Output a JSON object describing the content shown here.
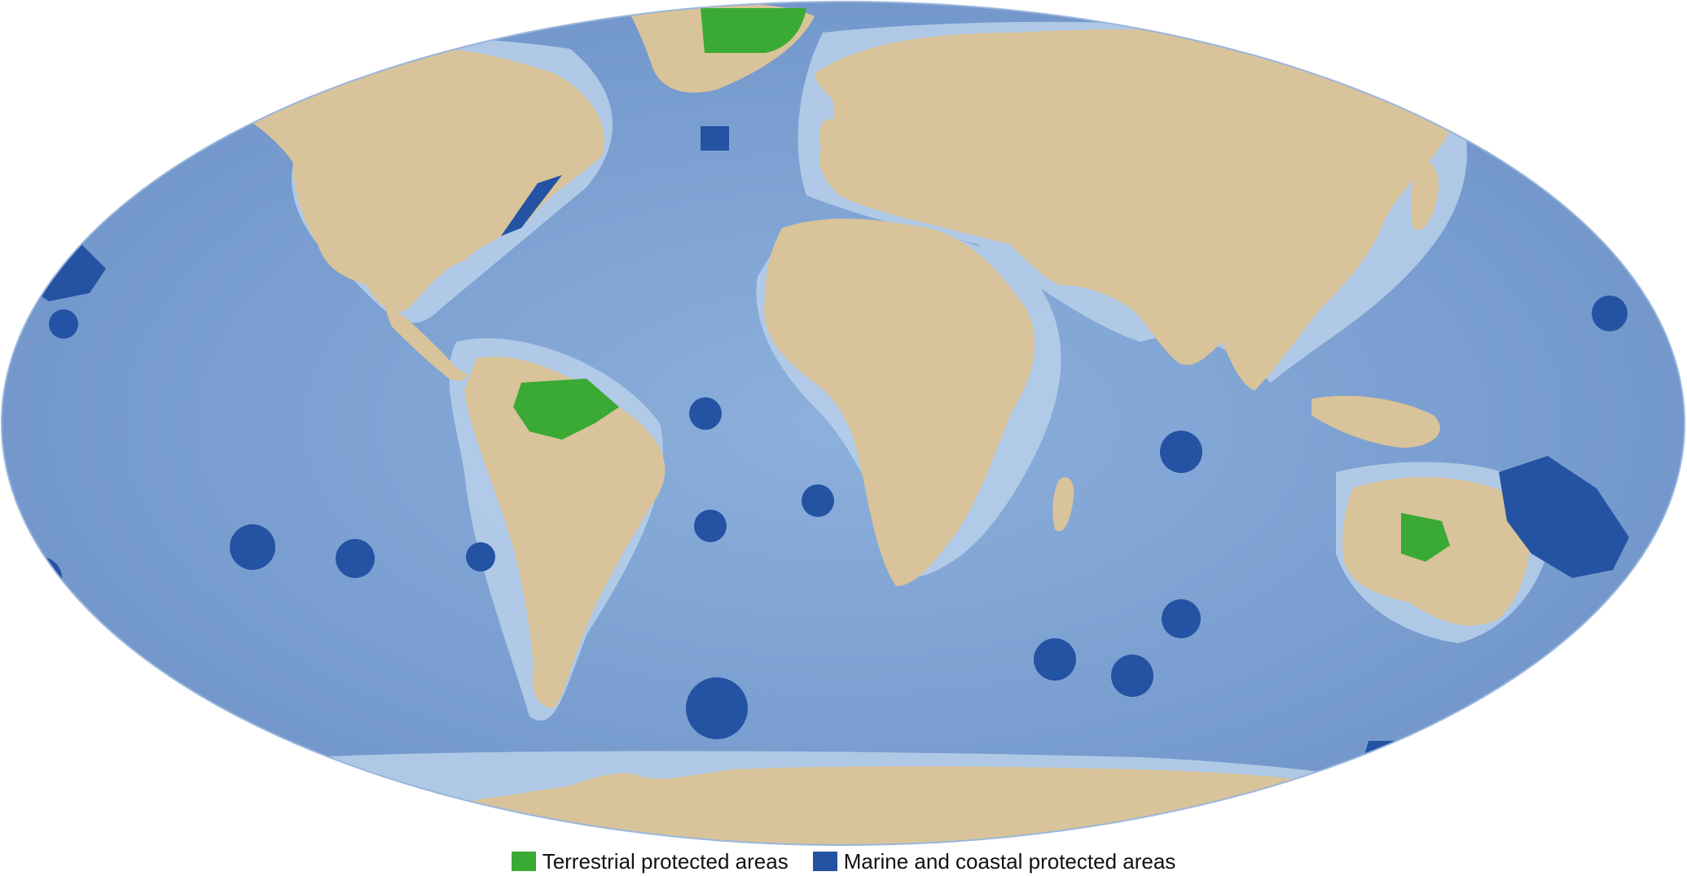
{
  "colors": {
    "ocean": "#7fa3d4",
    "ocean_deep": "#6a8fc6",
    "ocean_shelf": "#b9d0ea",
    "land": "#d8c39a",
    "terrestrial": "#3aaa35",
    "marine": "#2453a4"
  },
  "legend": {
    "items": [
      {
        "label": "Terrestrial protected areas",
        "color": "#3aaa35",
        "icon": "green-square-swatch"
      },
      {
        "label": "Marine and coastal protected areas",
        "color": "#2453a4",
        "icon": "blue-square-swatch"
      }
    ]
  }
}
